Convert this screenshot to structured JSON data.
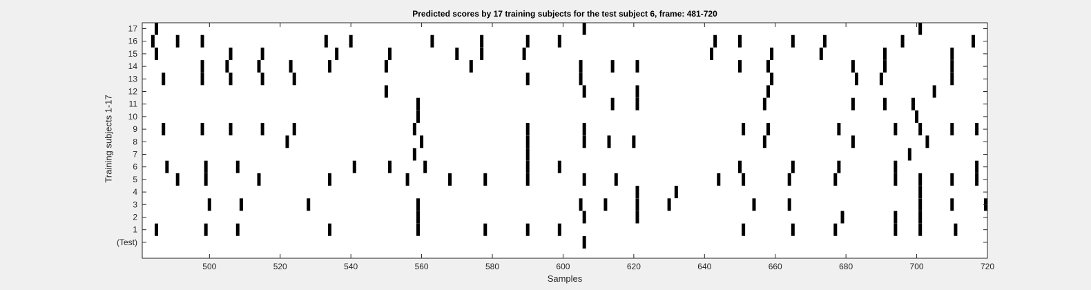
{
  "chart_data": {
    "type": "scatter",
    "marker": "vertical-bar",
    "title": "Predicted scores by 17 training subjects for the test subject 6, frame: 481-720",
    "xlabel": "Samples",
    "ylabel": "Training subjects 1-17",
    "xlim": [
      481,
      720
    ],
    "xticks": [
      500,
      520,
      540,
      560,
      580,
      600,
      620,
      640,
      660,
      680,
      700,
      720
    ],
    "yticks": [
      "(Test)",
      "1",
      "2",
      "3",
      "4",
      "5",
      "6",
      "7",
      "8",
      "9",
      "10",
      "11",
      "12",
      "13",
      "14",
      "15",
      "16",
      "17"
    ],
    "grid": false,
    "color": "#000000",
    "rows": [
      {
        "label": "(Test)",
        "x": [
          606
        ]
      },
      {
        "label": "1",
        "x": [
          485,
          499,
          508,
          534,
          559,
          578,
          590,
          599,
          651,
          665,
          677,
          694,
          701,
          711
        ]
      },
      {
        "label": "2",
        "x": [
          559,
          606,
          621,
          679,
          694,
          701
        ]
      },
      {
        "label": "3",
        "x": [
          500,
          509,
          528,
          559,
          605,
          612,
          621,
          630,
          654,
          664,
          701,
          710,
          720
        ]
      },
      {
        "label": "4",
        "x": [
          621,
          632,
          701
        ]
      },
      {
        "label": "5",
        "x": [
          491,
          499,
          514,
          534,
          556,
          568,
          578,
          590,
          606,
          615,
          644,
          651,
          664,
          677,
          694,
          701,
          710,
          717
        ]
      },
      {
        "label": "6",
        "x": [
          488,
          499,
          508,
          541,
          551,
          561,
          590,
          599,
          650,
          665,
          678,
          694,
          717
        ]
      },
      {
        "label": "7",
        "x": [
          558,
          590,
          698
        ]
      },
      {
        "label": "8",
        "x": [
          522,
          560,
          590,
          606,
          613,
          620,
          657,
          682,
          703
        ]
      },
      {
        "label": "9",
        "x": [
          487,
          498,
          506,
          515,
          524,
          558,
          590,
          606,
          651,
          658,
          678,
          694,
          701,
          710,
          717
        ]
      },
      {
        "label": "10",
        "x": [
          559,
          700
        ]
      },
      {
        "label": "11",
        "x": [
          559,
          614,
          621,
          657,
          682,
          691,
          699
        ]
      },
      {
        "label": "12",
        "x": [
          550,
          606,
          621,
          658,
          705
        ]
      },
      {
        "label": "13",
        "x": [
          487,
          498,
          506,
          515,
          524,
          590,
          605,
          659,
          683,
          690,
          710
        ]
      },
      {
        "label": "14",
        "x": [
          498,
          505,
          514,
          523,
          534,
          550,
          574,
          605,
          614,
          621,
          650,
          658,
          682,
          691,
          710
        ]
      },
      {
        "label": "15",
        "x": [
          485,
          506,
          515,
          536,
          551,
          570,
          577,
          589,
          642,
          659,
          673,
          691,
          710
        ]
      },
      {
        "label": "16",
        "x": [
          484,
          491,
          498,
          533,
          540,
          563,
          577,
          590,
          599,
          643,
          650,
          665,
          674,
          696,
          716
        ]
      },
      {
        "label": "17",
        "x": [
          485,
          606,
          701
        ]
      }
    ]
  }
}
